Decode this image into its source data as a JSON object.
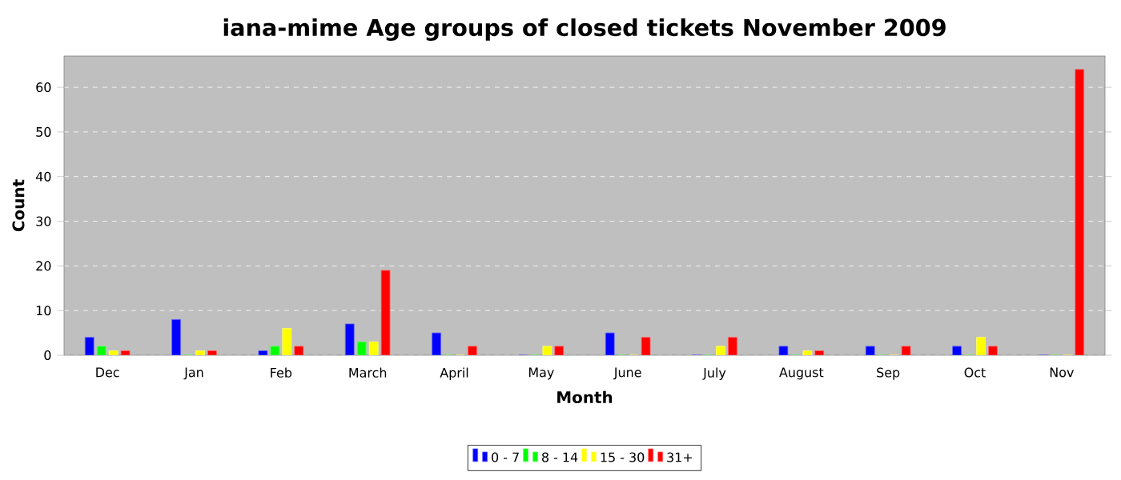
{
  "chart_data": {
    "type": "bar",
    "title": "iana-mime Age groups of closed tickets November 2009",
    "xlabel": "Month",
    "ylabel": "Count",
    "categories": [
      "Dec",
      "Jan",
      "Feb",
      "March",
      "April",
      "May",
      "June",
      "July",
      "August",
      "Sep",
      "Oct",
      "Nov"
    ],
    "series": [
      {
        "name": "0 - 7",
        "color": "#0000ff",
        "values": [
          4,
          8,
          1,
          7,
          5,
          0,
          5,
          0,
          2,
          2,
          2,
          0
        ]
      },
      {
        "name": "8 - 14",
        "color": "#00ff00",
        "values": [
          2,
          0,
          2,
          3,
          0,
          0,
          0,
          0,
          0,
          0,
          0,
          0
        ]
      },
      {
        "name": "15 - 30",
        "color": "#ffff00",
        "values": [
          1,
          1,
          6,
          3,
          0,
          2,
          0,
          2,
          1,
          0,
          4,
          0
        ]
      },
      {
        "name": "31+",
        "color": "#ff0000",
        "values": [
          1,
          1,
          2,
          19,
          2,
          2,
          4,
          4,
          1,
          2,
          2,
          64
        ]
      }
    ],
    "ylim": [
      0,
      67
    ],
    "yticks": [
      0,
      10,
      20,
      30,
      40,
      50,
      60
    ],
    "grid": "y",
    "legend": "bottom"
  }
}
